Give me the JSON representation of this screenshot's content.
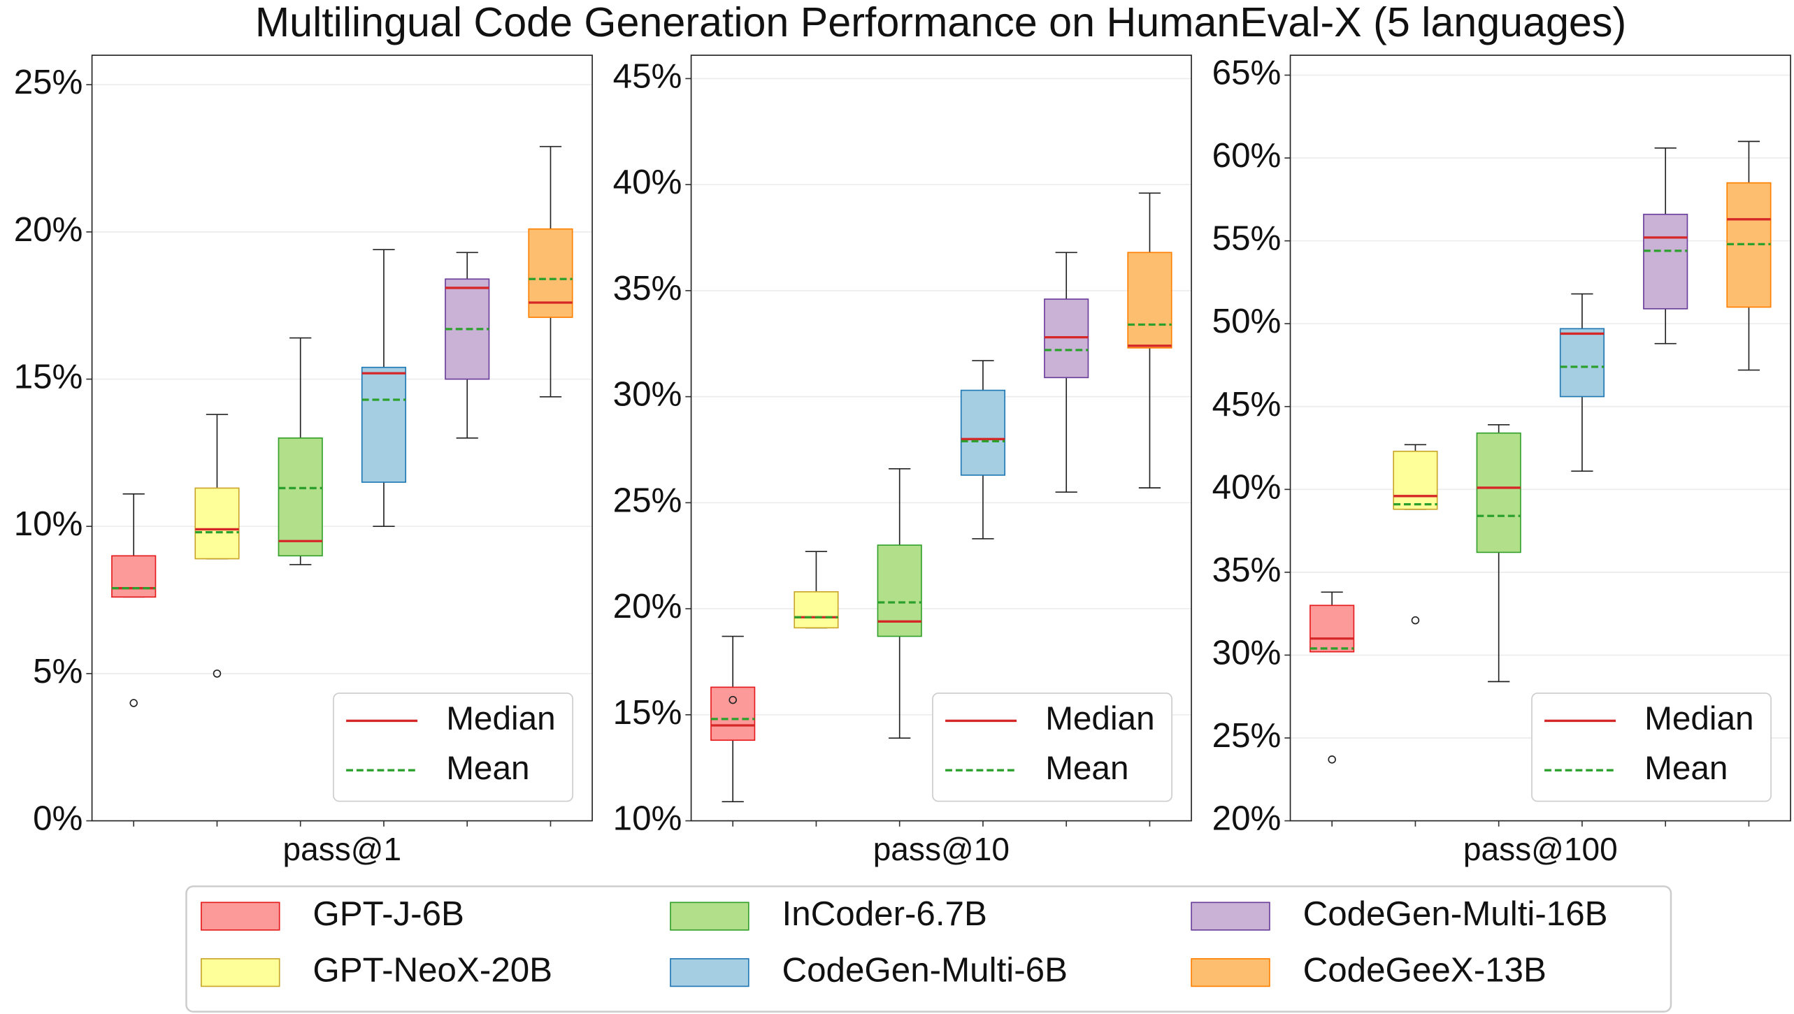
{
  "title": "Multilingual Code Generation Performance on HumanEval-X (5 languages)",
  "stat_legend": {
    "median": "Median",
    "mean": "Mean",
    "median_color": "#d62728",
    "mean_color": "#2ca02c"
  },
  "chart_data": [
    {
      "type": "box",
      "xlabel": "pass@1",
      "ylim": [
        0,
        26
      ],
      "grid": true,
      "legend": "lower right",
      "yticks": [
        {
          "value": 0,
          "label": "0%"
        },
        {
          "value": 5,
          "label": "5%"
        },
        {
          "value": 10,
          "label": "10%"
        },
        {
          "value": 15,
          "label": "15%"
        },
        {
          "value": 20,
          "label": "20%"
        },
        {
          "value": 25,
          "label": "25%"
        }
      ],
      "series": [
        {
          "name": "GPT-J-6B",
          "color": "#fb9a99",
          "edge": "#e41a1c",
          "whislo": 7.6,
          "q1": 7.6,
          "med": 7.9,
          "q3": 9.0,
          "whishi": 11.1,
          "mean": 7.9,
          "fliers": [
            4.0
          ]
        },
        {
          "name": "GPT-NeoX-20B",
          "color": "#ffff99",
          "edge": "#c9a52a",
          "whislo": 8.9,
          "q1": 8.9,
          "med": 9.9,
          "q3": 11.3,
          "whishi": 13.8,
          "mean": 9.8,
          "fliers": [
            5.0
          ]
        },
        {
          "name": "InCoder-6.7B",
          "color": "#b2df8a",
          "edge": "#33a02c",
          "whislo": 8.7,
          "q1": 9.0,
          "med": 9.5,
          "q3": 13.0,
          "whishi": 16.4,
          "mean": 11.3,
          "fliers": []
        },
        {
          "name": "CodeGen-Multi-6B",
          "color": "#a6cee3",
          "edge": "#1f78b4",
          "whislo": 10.0,
          "q1": 11.5,
          "med": 15.2,
          "q3": 15.4,
          "whishi": 19.4,
          "mean": 14.3,
          "fliers": []
        },
        {
          "name": "CodeGen-Multi-16B",
          "color": "#cab2d6",
          "edge": "#6a3d9a",
          "whislo": 13.0,
          "q1": 15.0,
          "med": 18.1,
          "q3": 18.4,
          "whishi": 19.3,
          "mean": 16.7,
          "fliers": []
        },
        {
          "name": "CodeGeeX-13B",
          "color": "#fdbf6f",
          "edge": "#ff7f00",
          "whislo": 14.4,
          "q1": 17.1,
          "med": 17.6,
          "q3": 20.1,
          "whishi": 22.9,
          "mean": 18.4,
          "fliers": []
        }
      ]
    },
    {
      "type": "box",
      "xlabel": "pass@10",
      "ylim": [
        10,
        46.1
      ],
      "grid": true,
      "legend": "lower right",
      "yticks": [
        {
          "value": 10,
          "label": "10%"
        },
        {
          "value": 15,
          "label": "15%"
        },
        {
          "value": 20,
          "label": "20%"
        },
        {
          "value": 25,
          "label": "25%"
        },
        {
          "value": 30,
          "label": "30%"
        },
        {
          "value": 35,
          "label": "35%"
        },
        {
          "value": 40,
          "label": "40%"
        },
        {
          "value": 45,
          "label": "45%"
        }
      ],
      "series": [
        {
          "name": "GPT-J-6B",
          "color": "#fb9a99",
          "edge": "#e41a1c",
          "whislo": 10.9,
          "q1": 13.8,
          "med": 14.5,
          "q3": 16.3,
          "whishi": 18.7,
          "mean": 14.8,
          "fliers": [
            15.7
          ]
        },
        {
          "name": "GPT-NeoX-20B",
          "color": "#ffff99",
          "edge": "#c9a52a",
          "whislo": 19.1,
          "q1": 19.1,
          "med": 19.6,
          "q3": 20.8,
          "whishi": 22.7,
          "mean": 19.6,
          "fliers": []
        },
        {
          "name": "InCoder-6.7B",
          "color": "#b2df8a",
          "edge": "#33a02c",
          "whislo": 13.9,
          "q1": 18.7,
          "med": 19.4,
          "q3": 23.0,
          "whishi": 26.6,
          "mean": 20.3,
          "fliers": []
        },
        {
          "name": "CodeGen-Multi-6B",
          "color": "#a6cee3",
          "edge": "#1f78b4",
          "whislo": 23.3,
          "q1": 26.3,
          "med": 28.0,
          "q3": 30.3,
          "whishi": 31.7,
          "mean": 27.9,
          "fliers": []
        },
        {
          "name": "CodeGen-Multi-16B",
          "color": "#cab2d6",
          "edge": "#6a3d9a",
          "whislo": 25.5,
          "q1": 30.9,
          "med": 32.8,
          "q3": 34.6,
          "whishi": 36.8,
          "mean": 32.2,
          "fliers": []
        },
        {
          "name": "CodeGeeX-13B",
          "color": "#fdbf6f",
          "edge": "#ff7f00",
          "whislo": 25.7,
          "q1": 32.3,
          "med": 32.4,
          "q3": 36.8,
          "whishi": 39.6,
          "mean": 33.4,
          "fliers": []
        }
      ]
    },
    {
      "type": "box",
      "xlabel": "pass@100",
      "ylim": [
        20,
        66.2
      ],
      "grid": true,
      "legend": "lower right",
      "yticks": [
        {
          "value": 20,
          "label": "20%"
        },
        {
          "value": 25,
          "label": "25%"
        },
        {
          "value": 30,
          "label": "30%"
        },
        {
          "value": 35,
          "label": "35%"
        },
        {
          "value": 40,
          "label": "40%"
        },
        {
          "value": 45,
          "label": "45%"
        },
        {
          "value": 50,
          "label": "50%"
        },
        {
          "value": 55,
          "label": "55%"
        },
        {
          "value": 60,
          "label": "60%"
        },
        {
          "value": 65,
          "label": "65%"
        }
      ],
      "series": [
        {
          "name": "GPT-J-6B",
          "color": "#fb9a99",
          "edge": "#e41a1c",
          "whislo": 30.2,
          "q1": 30.2,
          "med": 31.0,
          "q3": 33.0,
          "whishi": 33.8,
          "mean": 30.4,
          "fliers": [
            23.7
          ]
        },
        {
          "name": "GPT-NeoX-20B",
          "color": "#ffff99",
          "edge": "#c9a52a",
          "whislo": 38.8,
          "q1": 38.8,
          "med": 39.6,
          "q3": 42.3,
          "whishi": 42.7,
          "mean": 39.1,
          "fliers": [
            32.1
          ]
        },
        {
          "name": "InCoder-6.7B",
          "color": "#b2df8a",
          "edge": "#33a02c",
          "whislo": 28.4,
          "q1": 36.2,
          "med": 40.1,
          "q3": 43.4,
          "whishi": 43.9,
          "mean": 38.4,
          "fliers": []
        },
        {
          "name": "CodeGen-Multi-6B",
          "color": "#a6cee3",
          "edge": "#1f78b4",
          "whislo": 41.1,
          "q1": 45.6,
          "med": 49.4,
          "q3": 49.7,
          "whishi": 51.8,
          "mean": 47.4,
          "fliers": []
        },
        {
          "name": "CodeGen-Multi-16B",
          "color": "#cab2d6",
          "edge": "#6a3d9a",
          "whislo": 48.8,
          "q1": 50.9,
          "med": 55.2,
          "q3": 56.6,
          "whishi": 60.6,
          "mean": 54.4,
          "fliers": []
        },
        {
          "name": "CodeGeeX-13B",
          "color": "#fdbf6f",
          "edge": "#ff7f00",
          "whislo": 47.2,
          "q1": 51.0,
          "med": 56.3,
          "q3": 58.5,
          "whishi": 61.0,
          "mean": 54.8,
          "fliers": []
        }
      ]
    }
  ]
}
